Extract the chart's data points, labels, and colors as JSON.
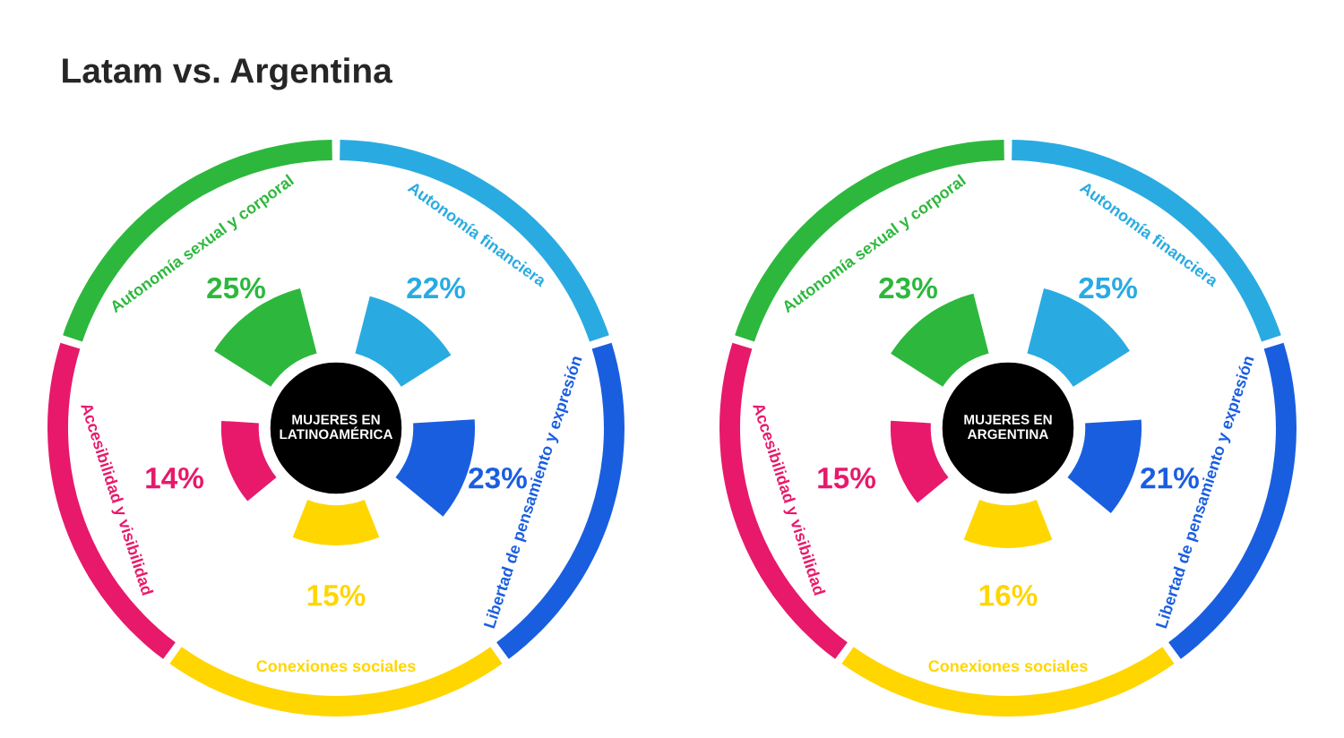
{
  "chart_data": [
    {
      "type": "other",
      "title": "Latam vs. Argentina",
      "subtitle": "MUJERES EN LATINOAMÉRICA",
      "categories": [
        "Autonomía sexual y corporal",
        "Autonomía financiera",
        "Libertad de pensamiento y expresión",
        "Conexiones sociales",
        "Accesibilidad y visibilidad"
      ],
      "values": [
        25,
        22,
        23,
        15,
        14
      ],
      "value_labels": [
        "25%",
        "22%",
        "23%",
        "15%",
        "14%"
      ],
      "colors": [
        "#2db83d",
        "#29abe2",
        "#1a5ee0",
        "#ffd600",
        "#e8196b"
      ]
    },
    {
      "type": "other",
      "subtitle": "MUJERES EN ARGENTINA",
      "categories": [
        "Autonomía sexual y corporal",
        "Autonomía financiera",
        "Libertad de pensamiento y expresión",
        "Conexiones sociales",
        "Accesibilidad y visibilidad"
      ],
      "values": [
        23,
        25,
        21,
        16,
        15
      ],
      "value_labels": [
        "23%",
        "25%",
        "21%",
        "16%",
        "15%"
      ],
      "colors": [
        "#2db83d",
        "#29abe2",
        "#1a5ee0",
        "#ffd600",
        "#e8196b"
      ]
    }
  ]
}
